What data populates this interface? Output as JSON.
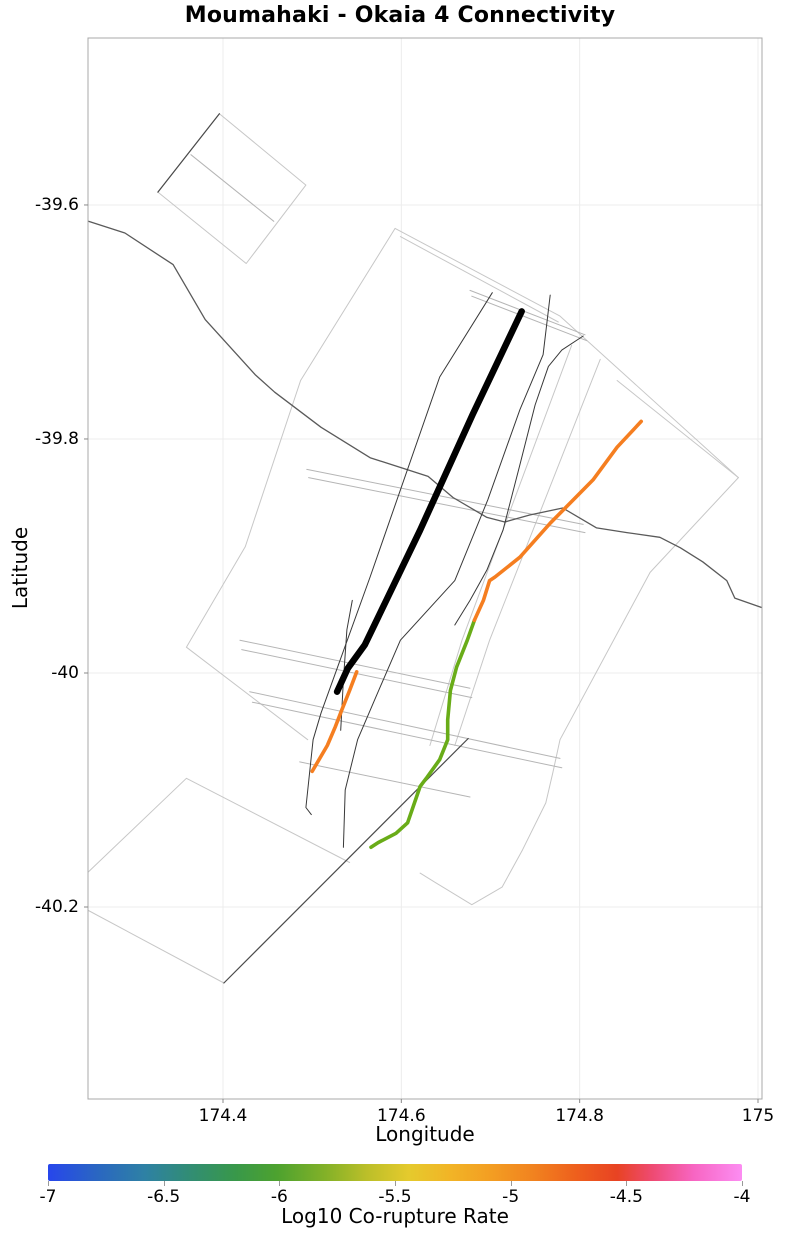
{
  "title": "Moumahaki - Okaia 4 Connectivity",
  "chart_data": {
    "type": "line",
    "subtype": "geographic-fault-map",
    "title": "Moumahaki - Okaia 4 Connectivity",
    "xlabel": "Longitude",
    "ylabel": "Latitude",
    "x_range": [
      174.2486,
      175.0045
    ],
    "y_range": [
      -40.3641,
      -39.4573
    ],
    "grid": true,
    "x_ticks": [
      {
        "value": 174.4,
        "label": "174.4"
      },
      {
        "value": 174.6,
        "label": "174.6"
      },
      {
        "value": 174.8,
        "label": "174.8"
      },
      {
        "value": 175.0,
        "label": "175"
      }
    ],
    "y_ticks": [
      {
        "value": -39.6,
        "label": "-39.6"
      },
      {
        "value": -39.8,
        "label": "-39.8"
      },
      {
        "value": -40.0,
        "label": "-40"
      },
      {
        "value": -40.2,
        "label": "-40.2"
      }
    ],
    "colorbar": {
      "label": "Log10 Co-rupture Rate",
      "min": -7,
      "max": -4,
      "ticks": [
        {
          "value": -7.0,
          "label": "-7"
        },
        {
          "value": -6.5,
          "label": "-6.5"
        },
        {
          "value": -6.0,
          "label": "-6"
        },
        {
          "value": -5.5,
          "label": "-5.5"
        },
        {
          "value": -5.0,
          "label": "-5"
        },
        {
          "value": -4.5,
          "label": "-4.5"
        },
        {
          "value": -4.0,
          "label": "-4"
        }
      ],
      "gradient": [
        {
          "pos": 0.0,
          "color": "#2746ec"
        },
        {
          "pos": 0.07,
          "color": "#2a66c2"
        },
        {
          "pos": 0.14,
          "color": "#2e81a4"
        },
        {
          "pos": 0.2,
          "color": "#318c77"
        },
        {
          "pos": 0.27,
          "color": "#38984a"
        },
        {
          "pos": 0.33,
          "color": "#4da22f"
        },
        {
          "pos": 0.4,
          "color": "#83b128"
        },
        {
          "pos": 0.46,
          "color": "#bcbf29"
        },
        {
          "pos": 0.52,
          "color": "#e5ca2d"
        },
        {
          "pos": 0.58,
          "color": "#f2b426"
        },
        {
          "pos": 0.64,
          "color": "#f39d22"
        },
        {
          "pos": 0.7,
          "color": "#f1821f"
        },
        {
          "pos": 0.76,
          "color": "#ee601d"
        },
        {
          "pos": 0.82,
          "color": "#e84323"
        },
        {
          "pos": 0.87,
          "color": "#ee4a71"
        },
        {
          "pos": 0.93,
          "color": "#f765c2"
        },
        {
          "pos": 1.0,
          "color": "#fc8df2"
        }
      ]
    },
    "series": [
      {
        "name": "fault-outline-nw-parallelogram",
        "role": "fault-outline",
        "color": "#c7c7c7",
        "width": 1,
        "closed": true,
        "points": [
          [
            174.327,
            -39.589
          ],
          [
            174.396,
            -39.522
          ],
          [
            174.493,
            -39.583
          ],
          [
            174.426,
            -39.65
          ]
        ]
      },
      {
        "name": "fault-outline-nw-inner-line",
        "role": "fault-outline",
        "color": "#b5b5b5",
        "width": 1,
        "points": [
          [
            174.364,
            -39.557
          ],
          [
            174.457,
            -39.614
          ]
        ]
      },
      {
        "name": "fault-outline-top-edge",
        "role": "fault-outline",
        "color": "#c7c7c7",
        "width": 1,
        "points": [
          [
            174.593,
            -39.62
          ],
          [
            174.778,
            -39.695
          ],
          [
            174.978,
            -39.833
          ]
        ]
      },
      {
        "name": "fault-outline-top-edge-pair",
        "role": "fault-outline",
        "color": "#c7c7c7",
        "width": 1,
        "points": [
          [
            174.599,
            -39.627
          ],
          [
            174.776,
            -39.7
          ]
        ]
      },
      {
        "name": "fault-outline-ne-edge",
        "role": "fault-outline",
        "color": "#c7c7c7",
        "width": 1,
        "points": [
          [
            174.842,
            -39.75
          ],
          [
            174.978,
            -39.833
          ]
        ]
      },
      {
        "name": "fault-outline-east-chain",
        "role": "fault-outline",
        "color": "#c7c7c7",
        "width": 1,
        "points": [
          [
            174.978,
            -39.833
          ],
          [
            174.879,
            -39.914
          ],
          [
            174.778,
            -40.057
          ],
          [
            174.77,
            -40.085
          ],
          [
            174.762,
            -40.111
          ],
          [
            174.736,
            -40.151
          ],
          [
            174.713,
            -40.183
          ],
          [
            174.679,
            -40.198
          ],
          [
            174.638,
            -40.179
          ],
          [
            174.621,
            -40.171
          ]
        ]
      },
      {
        "name": "fault-outline-west-chain",
        "role": "fault-outline",
        "color": "#c7c7c7",
        "width": 1,
        "points": [
          [
            174.593,
            -39.62
          ],
          [
            174.487,
            -39.75
          ],
          [
            174.425,
            -39.892
          ],
          [
            174.359,
            -39.978
          ],
          [
            174.495,
            -40.057
          ]
        ]
      },
      {
        "name": "fault-outline-inner-band-1",
        "role": "fault-outline",
        "color": "#c7c7c7",
        "width": 1,
        "points": [
          [
            174.823,
            -39.732
          ],
          [
            174.699,
            -39.972
          ],
          [
            174.66,
            -40.062
          ]
        ]
      },
      {
        "name": "fault-outline-inner-band-2",
        "role": "fault-outline",
        "color": "#c7c7c7",
        "width": 1,
        "points": [
          [
            174.791,
            -39.72
          ],
          [
            174.668,
            -39.972
          ],
          [
            174.632,
            -40.062
          ]
        ]
      },
      {
        "name": "fault-outline-sw-upper",
        "role": "fault-outline",
        "color": "#c7c7c7",
        "width": 1,
        "points": [
          [
            174.249,
            -40.17
          ],
          [
            174.359,
            -40.09
          ],
          [
            174.542,
            -40.162
          ]
        ]
      },
      {
        "name": "fault-outline-sw-lower",
        "role": "fault-outline",
        "color": "#c7c7c7",
        "width": 1,
        "points": [
          [
            174.249,
            -40.203
          ],
          [
            174.401,
            -40.265
          ]
        ]
      },
      {
        "name": "cross-tie-north-1",
        "role": "fault-outline",
        "color": "#b5b5b5",
        "width": 1,
        "points": [
          [
            174.677,
            -39.673
          ],
          [
            174.806,
            -39.711
          ]
        ]
      },
      {
        "name": "cross-tie-north-2",
        "role": "fault-outline",
        "color": "#b5b5b5",
        "width": 1,
        "points": [
          [
            174.679,
            -39.678
          ],
          [
            174.808,
            -39.716
          ]
        ]
      },
      {
        "name": "cross-tie-mid-1",
        "role": "fault-outline",
        "color": "#b5b5b5",
        "width": 1,
        "points": [
          [
            174.494,
            -39.826
          ],
          [
            174.804,
            -39.873
          ]
        ]
      },
      {
        "name": "cross-tie-mid-2",
        "role": "fault-outline",
        "color": "#b5b5b5",
        "width": 1,
        "points": [
          [
            174.496,
            -39.833
          ],
          [
            174.806,
            -39.88
          ]
        ]
      },
      {
        "name": "cross-tie-south-1",
        "role": "fault-outline",
        "color": "#b5b5b5",
        "width": 1,
        "points": [
          [
            174.419,
            -39.972
          ],
          [
            174.677,
            -40.013
          ]
        ]
      },
      {
        "name": "cross-tie-south-2",
        "role": "fault-outline",
        "color": "#b5b5b5",
        "width": 1,
        "points": [
          [
            174.421,
            -39.98
          ],
          [
            174.679,
            -40.021
          ]
        ]
      },
      {
        "name": "cross-tie-south-3",
        "role": "fault-outline",
        "color": "#b5b5b5",
        "width": 1,
        "points": [
          [
            174.43,
            -40.016
          ],
          [
            174.778,
            -40.073
          ]
        ]
      },
      {
        "name": "cross-tie-south-4",
        "role": "fault-outline",
        "color": "#b5b5b5",
        "width": 1,
        "points": [
          [
            174.433,
            -40.025
          ],
          [
            174.78,
            -40.081
          ]
        ]
      },
      {
        "name": "cross-tie-south-5",
        "role": "fault-outline",
        "color": "#b5b5b5",
        "width": 1,
        "points": [
          [
            174.486,
            -40.076
          ],
          [
            174.677,
            -40.106
          ]
        ]
      },
      {
        "name": "coastline",
        "role": "coastline",
        "color": "#5a5a5a",
        "width": 1.3,
        "points": [
          [
            174.249,
            -39.614
          ],
          [
            174.29,
            -39.624
          ],
          [
            174.344,
            -39.651
          ],
          [
            174.38,
            -39.698
          ],
          [
            174.436,
            -39.745
          ],
          [
            174.458,
            -39.76
          ],
          [
            174.51,
            -39.79
          ],
          [
            174.565,
            -39.816
          ],
          [
            174.63,
            -39.832
          ],
          [
            174.658,
            -39.85
          ],
          [
            174.696,
            -39.867
          ],
          [
            174.716,
            -39.871
          ],
          [
            174.744,
            -39.865
          ],
          [
            174.781,
            -39.859
          ],
          [
            174.819,
            -39.876
          ],
          [
            174.853,
            -39.88
          ],
          [
            174.89,
            -39.884
          ],
          [
            174.913,
            -39.893
          ],
          [
            174.938,
            -39.905
          ],
          [
            174.965,
            -39.921
          ],
          [
            174.974,
            -39.936
          ],
          [
            175.004,
            -39.944
          ]
        ]
      },
      {
        "name": "fault-trace-west-long",
        "role": "fault-trace",
        "color": "#383838",
        "width": 1,
        "points": [
          [
            174.702,
            -39.675
          ],
          [
            174.643,
            -39.747
          ],
          [
            174.565,
            -39.918
          ],
          [
            174.51,
            -40.034
          ],
          [
            174.501,
            -40.057
          ],
          [
            174.493,
            -40.115
          ],
          [
            174.499,
            -40.121
          ]
        ]
      },
      {
        "name": "fault-trace-east-long",
        "role": "fault-trace",
        "color": "#383838",
        "width": 1,
        "points": [
          [
            174.767,
            -39.677
          ],
          [
            174.759,
            -39.728
          ],
          [
            174.733,
            -39.775
          ],
          [
            174.697,
            -39.852
          ],
          [
            174.66,
            -39.921
          ],
          [
            174.599,
            -39.972
          ],
          [
            174.57,
            -40.023
          ],
          [
            174.551,
            -40.057
          ],
          [
            174.537,
            -40.1
          ],
          [
            174.535,
            -40.149
          ]
        ]
      },
      {
        "name": "fault-trace-curved",
        "role": "fault-trace",
        "color": "#383838",
        "width": 1,
        "points": [
          [
            174.804,
            -39.712
          ],
          [
            174.78,
            -39.724
          ],
          [
            174.765,
            -39.738
          ],
          [
            174.75,
            -39.771
          ],
          [
            174.733,
            -39.822
          ],
          [
            174.714,
            -39.878
          ],
          [
            174.696,
            -39.912
          ],
          [
            174.677,
            -39.938
          ],
          [
            174.66,
            -39.959
          ]
        ]
      },
      {
        "name": "fault-trace-short-mid",
        "role": "fault-trace",
        "color": "#383838",
        "width": 1,
        "points": [
          [
            174.545,
            -39.938
          ],
          [
            174.539,
            -39.963
          ],
          [
            174.535,
            -40.006
          ],
          [
            174.532,
            -40.049
          ]
        ]
      },
      {
        "name": "fault-trace-south-diagonal",
        "role": "fault-trace",
        "color": "#4a4a4a",
        "width": 1.2,
        "points": [
          [
            174.675,
            -40.056
          ],
          [
            174.401,
            -40.265
          ]
        ]
      },
      {
        "name": "fault-trace-nw-edge",
        "role": "fault-trace",
        "color": "#4a4a4a",
        "width": 1.2,
        "points": [
          [
            174.327,
            -39.589
          ],
          [
            174.396,
            -39.522
          ]
        ]
      },
      {
        "name": "corupture-trace-green",
        "role": "corupture-trace",
        "rate_log10": -5.9,
        "color": "#69ac18",
        "width": 3.6,
        "points": [
          [
            174.682,
            -39.955
          ],
          [
            174.674,
            -39.972
          ],
          [
            174.662,
            -39.995
          ],
          [
            174.655,
            -40.015
          ],
          [
            174.652,
            -40.04
          ],
          [
            174.652,
            -40.057
          ],
          [
            174.643,
            -40.074
          ],
          [
            174.629,
            -40.089
          ],
          [
            174.621,
            -40.097
          ],
          [
            174.607,
            -40.128
          ],
          [
            174.594,
            -40.137
          ],
          [
            174.574,
            -40.145
          ],
          [
            174.566,
            -40.149
          ]
        ]
      },
      {
        "name": "corupture-trace-orange-east",
        "role": "corupture-trace",
        "rate_log10": -4.7,
        "color": "#f57e20",
        "width": 3.6,
        "points": [
          [
            174.869,
            -39.785
          ],
          [
            174.842,
            -39.807
          ],
          [
            174.815,
            -39.835
          ],
          [
            174.767,
            -39.872
          ],
          [
            174.733,
            -39.901
          ],
          [
            174.705,
            -39.918
          ],
          [
            174.699,
            -39.921
          ],
          [
            174.692,
            -39.938
          ],
          [
            174.682,
            -39.955
          ]
        ]
      },
      {
        "name": "corupture-trace-orange-west",
        "role": "corupture-trace",
        "rate_log10": -4.7,
        "color": "#f57e20",
        "width": 3.6,
        "points": [
          [
            174.55,
            -39.999
          ],
          [
            174.542,
            -40.015
          ],
          [
            174.533,
            -40.032
          ],
          [
            174.526,
            -40.046
          ],
          [
            174.517,
            -40.062
          ],
          [
            174.5,
            -40.084
          ]
        ]
      },
      {
        "name": "source-fault-moumahaki-okaia-4",
        "role": "source-fault",
        "color": "#000000",
        "width": 6.5,
        "points": [
          [
            174.735,
            -39.691
          ],
          [
            174.68,
            -39.779
          ],
          [
            174.621,
            -39.878
          ],
          [
            174.559,
            -39.976
          ],
          [
            174.54,
            -39.996
          ],
          [
            174.528,
            -40.016
          ]
        ]
      }
    ]
  }
}
